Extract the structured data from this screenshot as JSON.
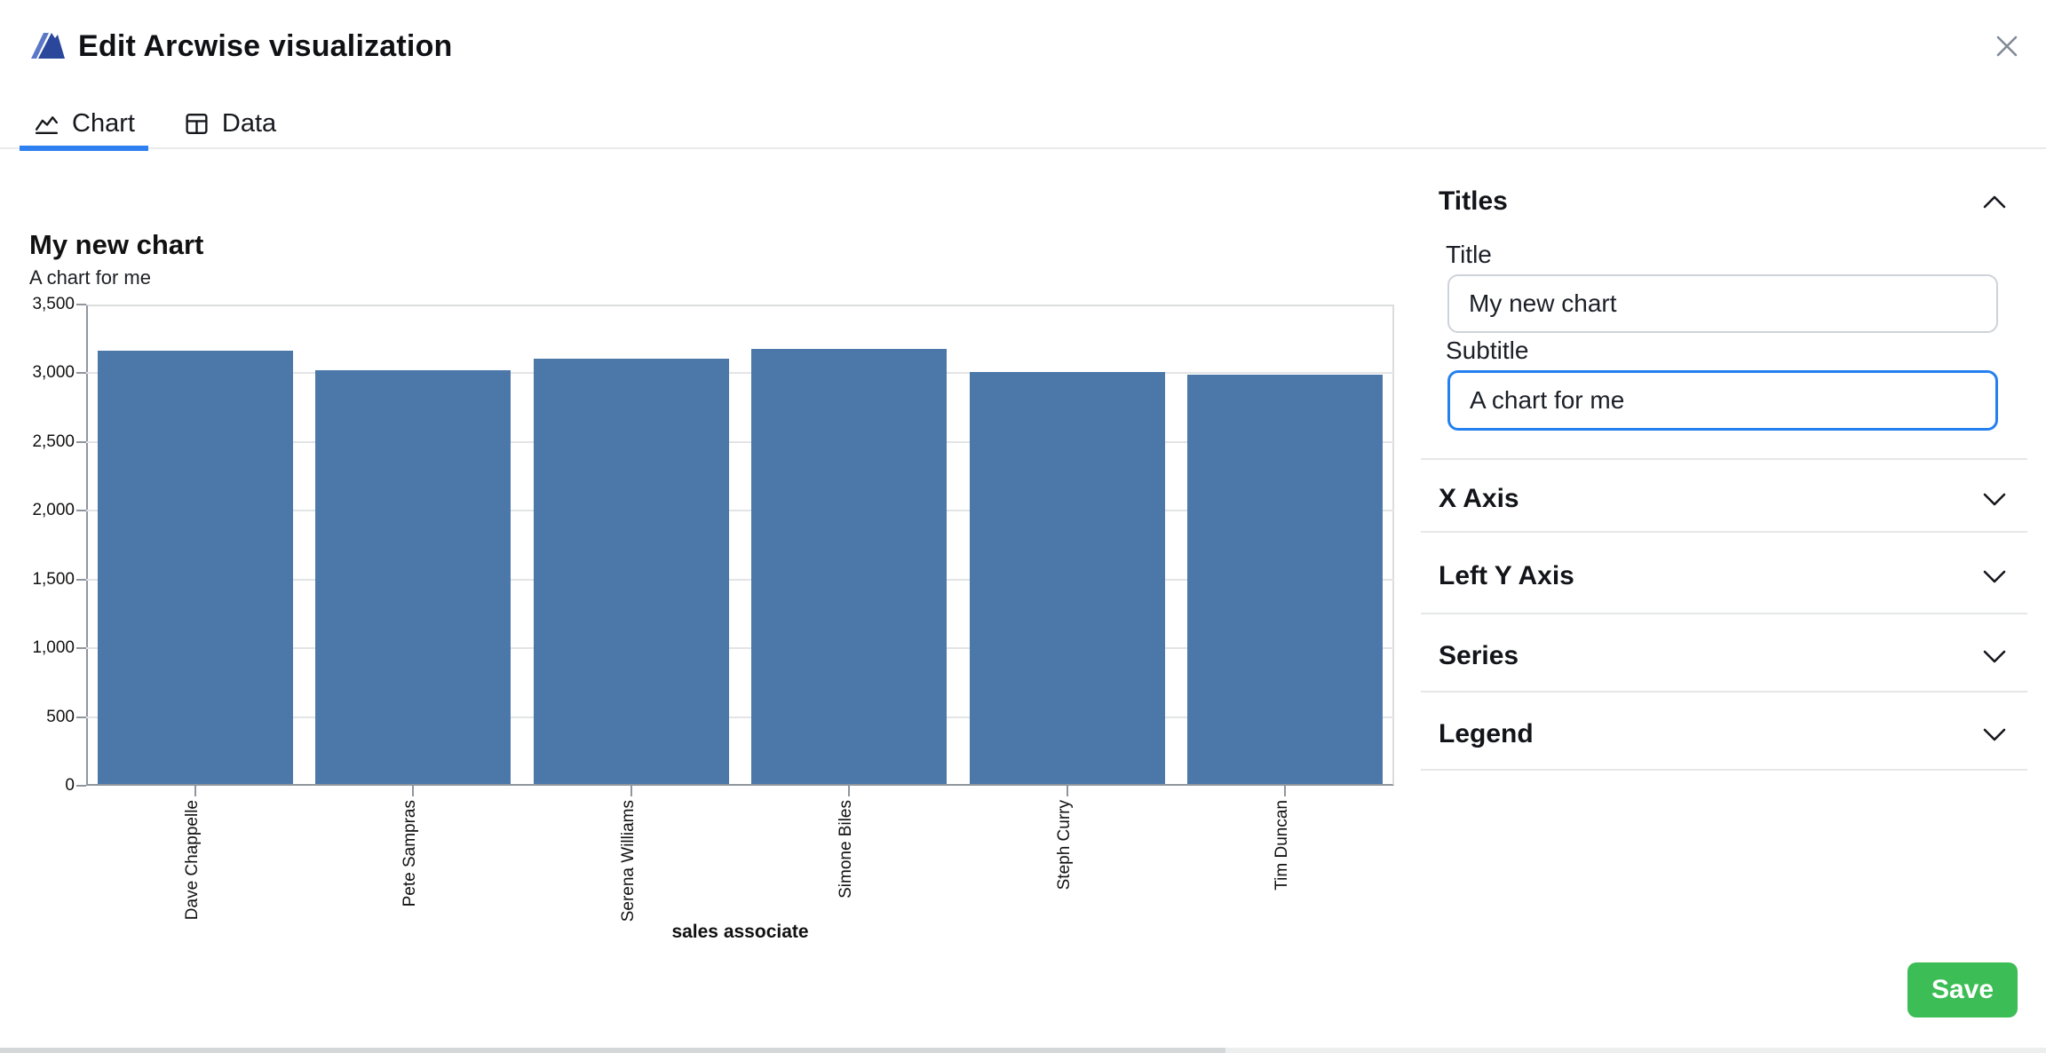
{
  "header": {
    "title": "Edit Arcwise visualization"
  },
  "tabs": [
    {
      "label": "Chart",
      "active": true
    },
    {
      "label": "Data",
      "active": false
    }
  ],
  "chart": {
    "title": "My new chart",
    "subtitle": "A chart for me"
  },
  "chart_data": {
    "type": "bar",
    "title": "My new chart",
    "subtitle": "A chart for me",
    "categories": [
      "Dave Chappelle",
      "Pete Sampras",
      "Serena Williams",
      "Simone Biles",
      "Steph Curry",
      "Tim Duncan"
    ],
    "values": [
      3165,
      3025,
      3105,
      3180,
      3010,
      2990
    ],
    "xlabel": "sales associate",
    "ylabel": "",
    "ylim": [
      0,
      3500
    ],
    "yticks": [
      0,
      500,
      1000,
      1500,
      2000,
      2500,
      3000,
      3500
    ],
    "ytick_labels": [
      "0",
      "500",
      "1,000",
      "1,500",
      "2,000",
      "2,500",
      "3,000",
      "3,500"
    ],
    "bar_color": "#4b77a9",
    "grid": true,
    "legend": false
  },
  "panel": {
    "sections": [
      {
        "label": "Titles",
        "expanded": true
      },
      {
        "label": "X Axis",
        "expanded": false
      },
      {
        "label": "Left Y Axis",
        "expanded": false
      },
      {
        "label": "Series",
        "expanded": false
      },
      {
        "label": "Legend",
        "expanded": false
      }
    ],
    "titles_form": {
      "title_label": "Title",
      "title_value": "My new chart",
      "subtitle_label": "Subtitle",
      "subtitle_value": "A chart for me"
    }
  },
  "footer": {
    "save_label": "Save"
  },
  "icons": [
    "arcwise-logo",
    "close-icon",
    "chart-tab-icon",
    "data-tab-icon",
    "chevron-up-icon",
    "chevron-down-icon"
  ],
  "colors": {
    "accent_blue": "#2e80f0",
    "bar": "#4b77a9",
    "save_green": "#3dbd55",
    "focus_border": "#2480f0"
  }
}
